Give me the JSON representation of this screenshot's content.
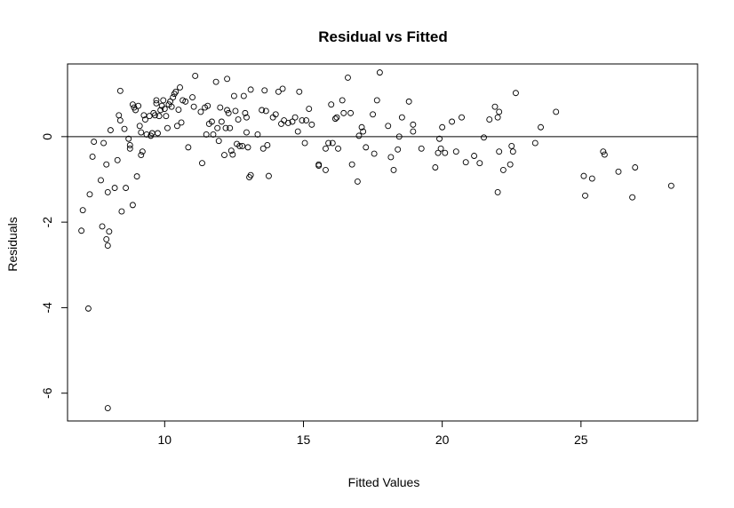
{
  "chart_data": {
    "type": "scatter",
    "title": "Residual vs Fitted",
    "xlabel": "Fitted Values",
    "ylabel": "Residuals",
    "xlim": [
      6.5,
      29.2
    ],
    "ylim": [
      -6.65,
      1.7
    ],
    "x_ticks": [
      10,
      15,
      20,
      25
    ],
    "x_tick_labels": [
      "10",
      "15",
      "20",
      "25"
    ],
    "y_ticks": [
      0,
      -2,
      -4,
      -6
    ],
    "y_tick_labels": [
      "0",
      "-2",
      "-4",
      "-6"
    ],
    "reference_line": 0,
    "grid": false,
    "marker": "open-circle",
    "points": [
      [
        7.0,
        -2.2
      ],
      [
        7.05,
        -1.72
      ],
      [
        7.3,
        -1.35
      ],
      [
        7.4,
        -0.47
      ],
      [
        7.45,
        -0.12
      ],
      [
        7.25,
        -4.02
      ],
      [
        7.75,
        -2.1
      ],
      [
        7.7,
        -1.02
      ],
      [
        7.8,
        -0.15
      ],
      [
        7.9,
        -0.65
      ],
      [
        7.95,
        -1.3
      ],
      [
        7.9,
        -2.4
      ],
      [
        7.95,
        -2.55
      ],
      [
        8.0,
        -2.22
      ],
      [
        8.05,
        0.15
      ],
      [
        7.95,
        -6.35
      ],
      [
        8.2,
        -1.2
      ],
      [
        8.3,
        -0.55
      ],
      [
        8.35,
        0.5
      ],
      [
        8.4,
        0.38
      ],
      [
        8.4,
        1.07
      ],
      [
        8.45,
        -1.75
      ],
      [
        8.55,
        0.18
      ],
      [
        8.6,
        -1.2
      ],
      [
        8.7,
        -0.05
      ],
      [
        8.75,
        -0.2
      ],
      [
        8.75,
        -0.28
      ],
      [
        8.85,
        0.75
      ],
      [
        8.9,
        0.68
      ],
      [
        8.85,
        -1.6
      ],
      [
        8.95,
        0.62
      ],
      [
        9.0,
        -0.93
      ],
      [
        9.05,
        0.72
      ],
      [
        9.1,
        0.25
      ],
      [
        9.15,
        0.1
      ],
      [
        9.15,
        -0.43
      ],
      [
        9.2,
        -0.35
      ],
      [
        9.25,
        0.5
      ],
      [
        9.3,
        0.4
      ],
      [
        9.35,
        0.05
      ],
      [
        9.45,
        0.48
      ],
      [
        9.5,
        0.02
      ],
      [
        9.55,
        0.08
      ],
      [
        9.6,
        0.55
      ],
      [
        9.65,
        0.5
      ],
      [
        9.7,
        0.78
      ],
      [
        9.7,
        0.85
      ],
      [
        9.75,
        0.08
      ],
      [
        9.8,
        0.48
      ],
      [
        9.85,
        0.62
      ],
      [
        9.9,
        0.72
      ],
      [
        9.95,
        0.85
      ],
      [
        10.0,
        0.65
      ],
      [
        10.05,
        0.48
      ],
      [
        10.1,
        0.2
      ],
      [
        10.15,
        0.75
      ],
      [
        10.2,
        0.82
      ],
      [
        10.25,
        0.7
      ],
      [
        10.3,
        0.92
      ],
      [
        10.35,
        1.0
      ],
      [
        10.4,
        1.05
      ],
      [
        10.45,
        0.25
      ],
      [
        10.5,
        0.63
      ],
      [
        10.55,
        1.15
      ],
      [
        10.6,
        0.33
      ],
      [
        10.65,
        0.85
      ],
      [
        10.75,
        0.82
      ],
      [
        10.85,
        -0.25
      ],
      [
        11.0,
        0.92
      ],
      [
        11.05,
        0.7
      ],
      [
        11.1,
        1.42
      ],
      [
        11.3,
        0.58
      ],
      [
        11.35,
        -0.62
      ],
      [
        11.45,
        0.68
      ],
      [
        11.5,
        0.05
      ],
      [
        11.55,
        0.72
      ],
      [
        11.6,
        0.3
      ],
      [
        11.7,
        0.35
      ],
      [
        11.75,
        0.05
      ],
      [
        11.85,
        1.28
      ],
      [
        11.9,
        0.2
      ],
      [
        11.95,
        -0.1
      ],
      [
        12.0,
        0.68
      ],
      [
        12.05,
        0.35
      ],
      [
        12.15,
        -0.43
      ],
      [
        12.2,
        0.2
      ],
      [
        12.25,
        0.62
      ],
      [
        12.3,
        0.55
      ],
      [
        12.25,
        1.35
      ],
      [
        12.35,
        0.2
      ],
      [
        12.4,
        -0.33
      ],
      [
        12.45,
        -0.42
      ],
      [
        12.5,
        0.95
      ],
      [
        12.55,
        0.6
      ],
      [
        12.6,
        -0.17
      ],
      [
        12.65,
        0.4
      ],
      [
        12.7,
        -0.22
      ],
      [
        12.8,
        -0.22
      ],
      [
        12.85,
        0.95
      ],
      [
        12.9,
        0.55
      ],
      [
        12.95,
        0.45
      ],
      [
        12.95,
        0.1
      ],
      [
        13.0,
        -0.25
      ],
      [
        13.05,
        -0.95
      ],
      [
        13.1,
        -0.9
      ],
      [
        13.1,
        1.1
      ],
      [
        13.35,
        0.05
      ],
      [
        13.5,
        0.62
      ],
      [
        13.55,
        -0.28
      ],
      [
        13.6,
        1.08
      ],
      [
        13.65,
        0.6
      ],
      [
        13.7,
        -0.2
      ],
      [
        13.75,
        -0.92
      ],
      [
        13.9,
        0.45
      ],
      [
        14.0,
        0.52
      ],
      [
        14.1,
        1.05
      ],
      [
        14.2,
        0.3
      ],
      [
        14.25,
        1.12
      ],
      [
        14.3,
        0.38
      ],
      [
        14.45,
        0.32
      ],
      [
        14.6,
        0.35
      ],
      [
        14.7,
        0.45
      ],
      [
        14.8,
        0.12
      ],
      [
        14.85,
        1.05
      ],
      [
        14.95,
        0.38
      ],
      [
        15.05,
        -0.15
      ],
      [
        15.1,
        0.38
      ],
      [
        15.2,
        0.65
      ],
      [
        15.3,
        0.28
      ],
      [
        15.55,
        -0.65
      ],
      [
        15.55,
        -0.68
      ],
      [
        15.8,
        -0.78
      ],
      [
        15.8,
        -0.28
      ],
      [
        15.9,
        -0.15
      ],
      [
        16.0,
        0.75
      ],
      [
        16.05,
        -0.15
      ],
      [
        16.15,
        0.42
      ],
      [
        16.2,
        0.45
      ],
      [
        16.25,
        -0.28
      ],
      [
        16.4,
        0.85
      ],
      [
        16.45,
        0.55
      ],
      [
        16.6,
        1.38
      ],
      [
        16.7,
        0.55
      ],
      [
        16.75,
        -0.65
      ],
      [
        16.95,
        -1.05
      ],
      [
        17.0,
        0.02
      ],
      [
        17.1,
        0.22
      ],
      [
        17.15,
        0.12
      ],
      [
        17.25,
        -0.25
      ],
      [
        17.5,
        0.52
      ],
      [
        17.55,
        -0.4
      ],
      [
        17.65,
        0.85
      ],
      [
        17.75,
        1.5
      ],
      [
        18.05,
        0.25
      ],
      [
        18.15,
        -0.48
      ],
      [
        18.25,
        -0.78
      ],
      [
        18.4,
        -0.3
      ],
      [
        18.45,
        0.0
      ],
      [
        18.55,
        0.45
      ],
      [
        18.8,
        0.82
      ],
      [
        18.95,
        0.12
      ],
      [
        18.95,
        0.28
      ],
      [
        19.25,
        -0.28
      ],
      [
        19.75,
        -0.72
      ],
      [
        19.85,
        -0.38
      ],
      [
        19.9,
        -0.05
      ],
      [
        19.95,
        -0.28
      ],
      [
        20.0,
        0.22
      ],
      [
        20.1,
        -0.38
      ],
      [
        20.35,
        0.35
      ],
      [
        20.5,
        -0.35
      ],
      [
        20.7,
        0.45
      ],
      [
        20.85,
        -0.6
      ],
      [
        21.15,
        -0.45
      ],
      [
        21.35,
        -0.62
      ],
      [
        21.5,
        -0.02
      ],
      [
        21.7,
        0.4
      ],
      [
        21.9,
        0.7
      ],
      [
        22.0,
        0.45
      ],
      [
        22.0,
        -1.3
      ],
      [
        22.05,
        0.58
      ],
      [
        22.05,
        -0.35
      ],
      [
        22.2,
        -0.78
      ],
      [
        22.45,
        -0.65
      ],
      [
        22.5,
        -0.22
      ],
      [
        22.55,
        -0.35
      ],
      [
        22.65,
        1.02
      ],
      [
        23.35,
        -0.15
      ],
      [
        23.55,
        0.22
      ],
      [
        24.1,
        0.58
      ],
      [
        25.1,
        -0.92
      ],
      [
        25.15,
        -1.38
      ],
      [
        25.4,
        -0.98
      ],
      [
        25.8,
        -0.35
      ],
      [
        25.85,
        -0.42
      ],
      [
        26.35,
        -0.82
      ],
      [
        26.85,
        -1.42
      ],
      [
        26.95,
        -0.72
      ],
      [
        28.25,
        -1.15
      ]
    ]
  }
}
